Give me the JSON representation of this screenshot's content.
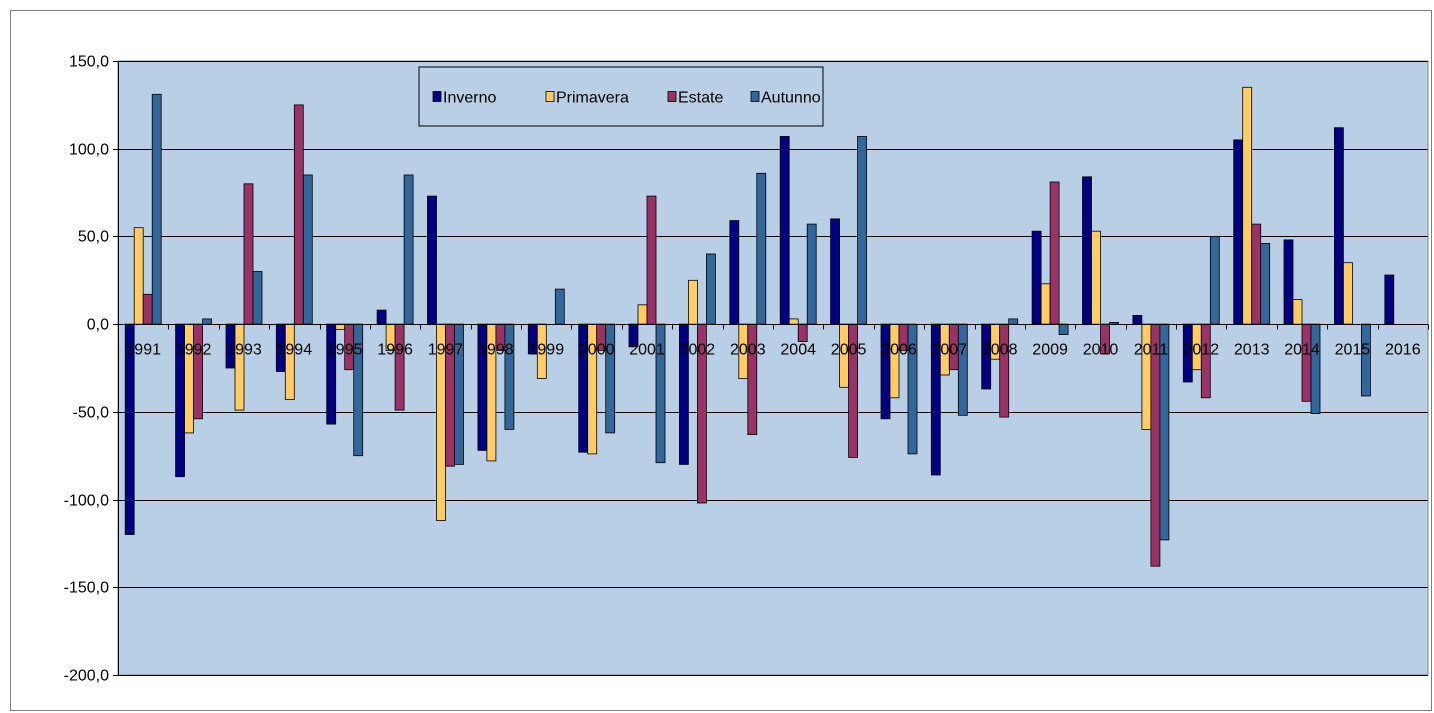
{
  "chart_data": {
    "type": "bar",
    "categories": [
      "1991",
      "1992",
      "1993",
      "1994",
      "1995",
      "1996",
      "1997",
      "1998",
      "1999",
      "2000",
      "2001",
      "2002",
      "2003",
      "2004",
      "2005",
      "2006",
      "2007",
      "2008",
      "2009",
      "2010",
      "2011",
      "2012",
      "2013",
      "2014",
      "2015",
      "2016"
    ],
    "series": [
      {
        "name": "Inverno",
        "color": "#000080",
        "values": [
          -120,
          -87,
          -25,
          -27,
          -57,
          8,
          73,
          -72,
          -17,
          -73,
          -13,
          -80,
          59,
          107,
          60,
          -54,
          -86,
          -37,
          53,
          84,
          5,
          -33,
          105,
          48,
          112,
          28
        ]
      },
      {
        "name": "Primavera",
        "color": "#FFCC66",
        "values": [
          55,
          -62,
          -49,
          -43,
          -3,
          -15,
          -112,
          -78,
          -31,
          -74,
          11,
          25,
          -31,
          3,
          -36,
          -42,
          -29,
          -20,
          23,
          53,
          -60,
          -26,
          135,
          14,
          35,
          null
        ]
      },
      {
        "name": "Estate",
        "color": "#993366",
        "values": [
          17,
          -54,
          80,
          125,
          -26,
          -49,
          -81,
          -15,
          0,
          -15,
          73,
          -102,
          -63,
          -10,
          -76,
          -15,
          -26,
          -53,
          81,
          -17,
          -138,
          -42,
          57,
          -44,
          0,
          null
        ]
      },
      {
        "name": "Autunno",
        "color": "#336699",
        "values": [
          131,
          3,
          30,
          85,
          -75,
          85,
          -80,
          -60,
          20,
          -62,
          -79,
          40,
          86,
          57,
          107,
          -74,
          -52,
          3,
          -6,
          1,
          -123,
          50,
          46,
          -51,
          -41,
          null
        ]
      }
    ],
    "ylim": [
      -200,
      150
    ],
    "yticks": [
      "150,0",
      "100,0",
      "50,0",
      "0,0",
      "-50,0",
      "-100,0",
      "-150,0",
      "-200,0"
    ],
    "ytick_values": [
      150,
      100,
      50,
      0,
      -50,
      -100,
      -150,
      -200
    ],
    "grid": true,
    "legend_position": "top-left",
    "plot_background": "#B9CFE6",
    "gridline_color": "#000000"
  }
}
